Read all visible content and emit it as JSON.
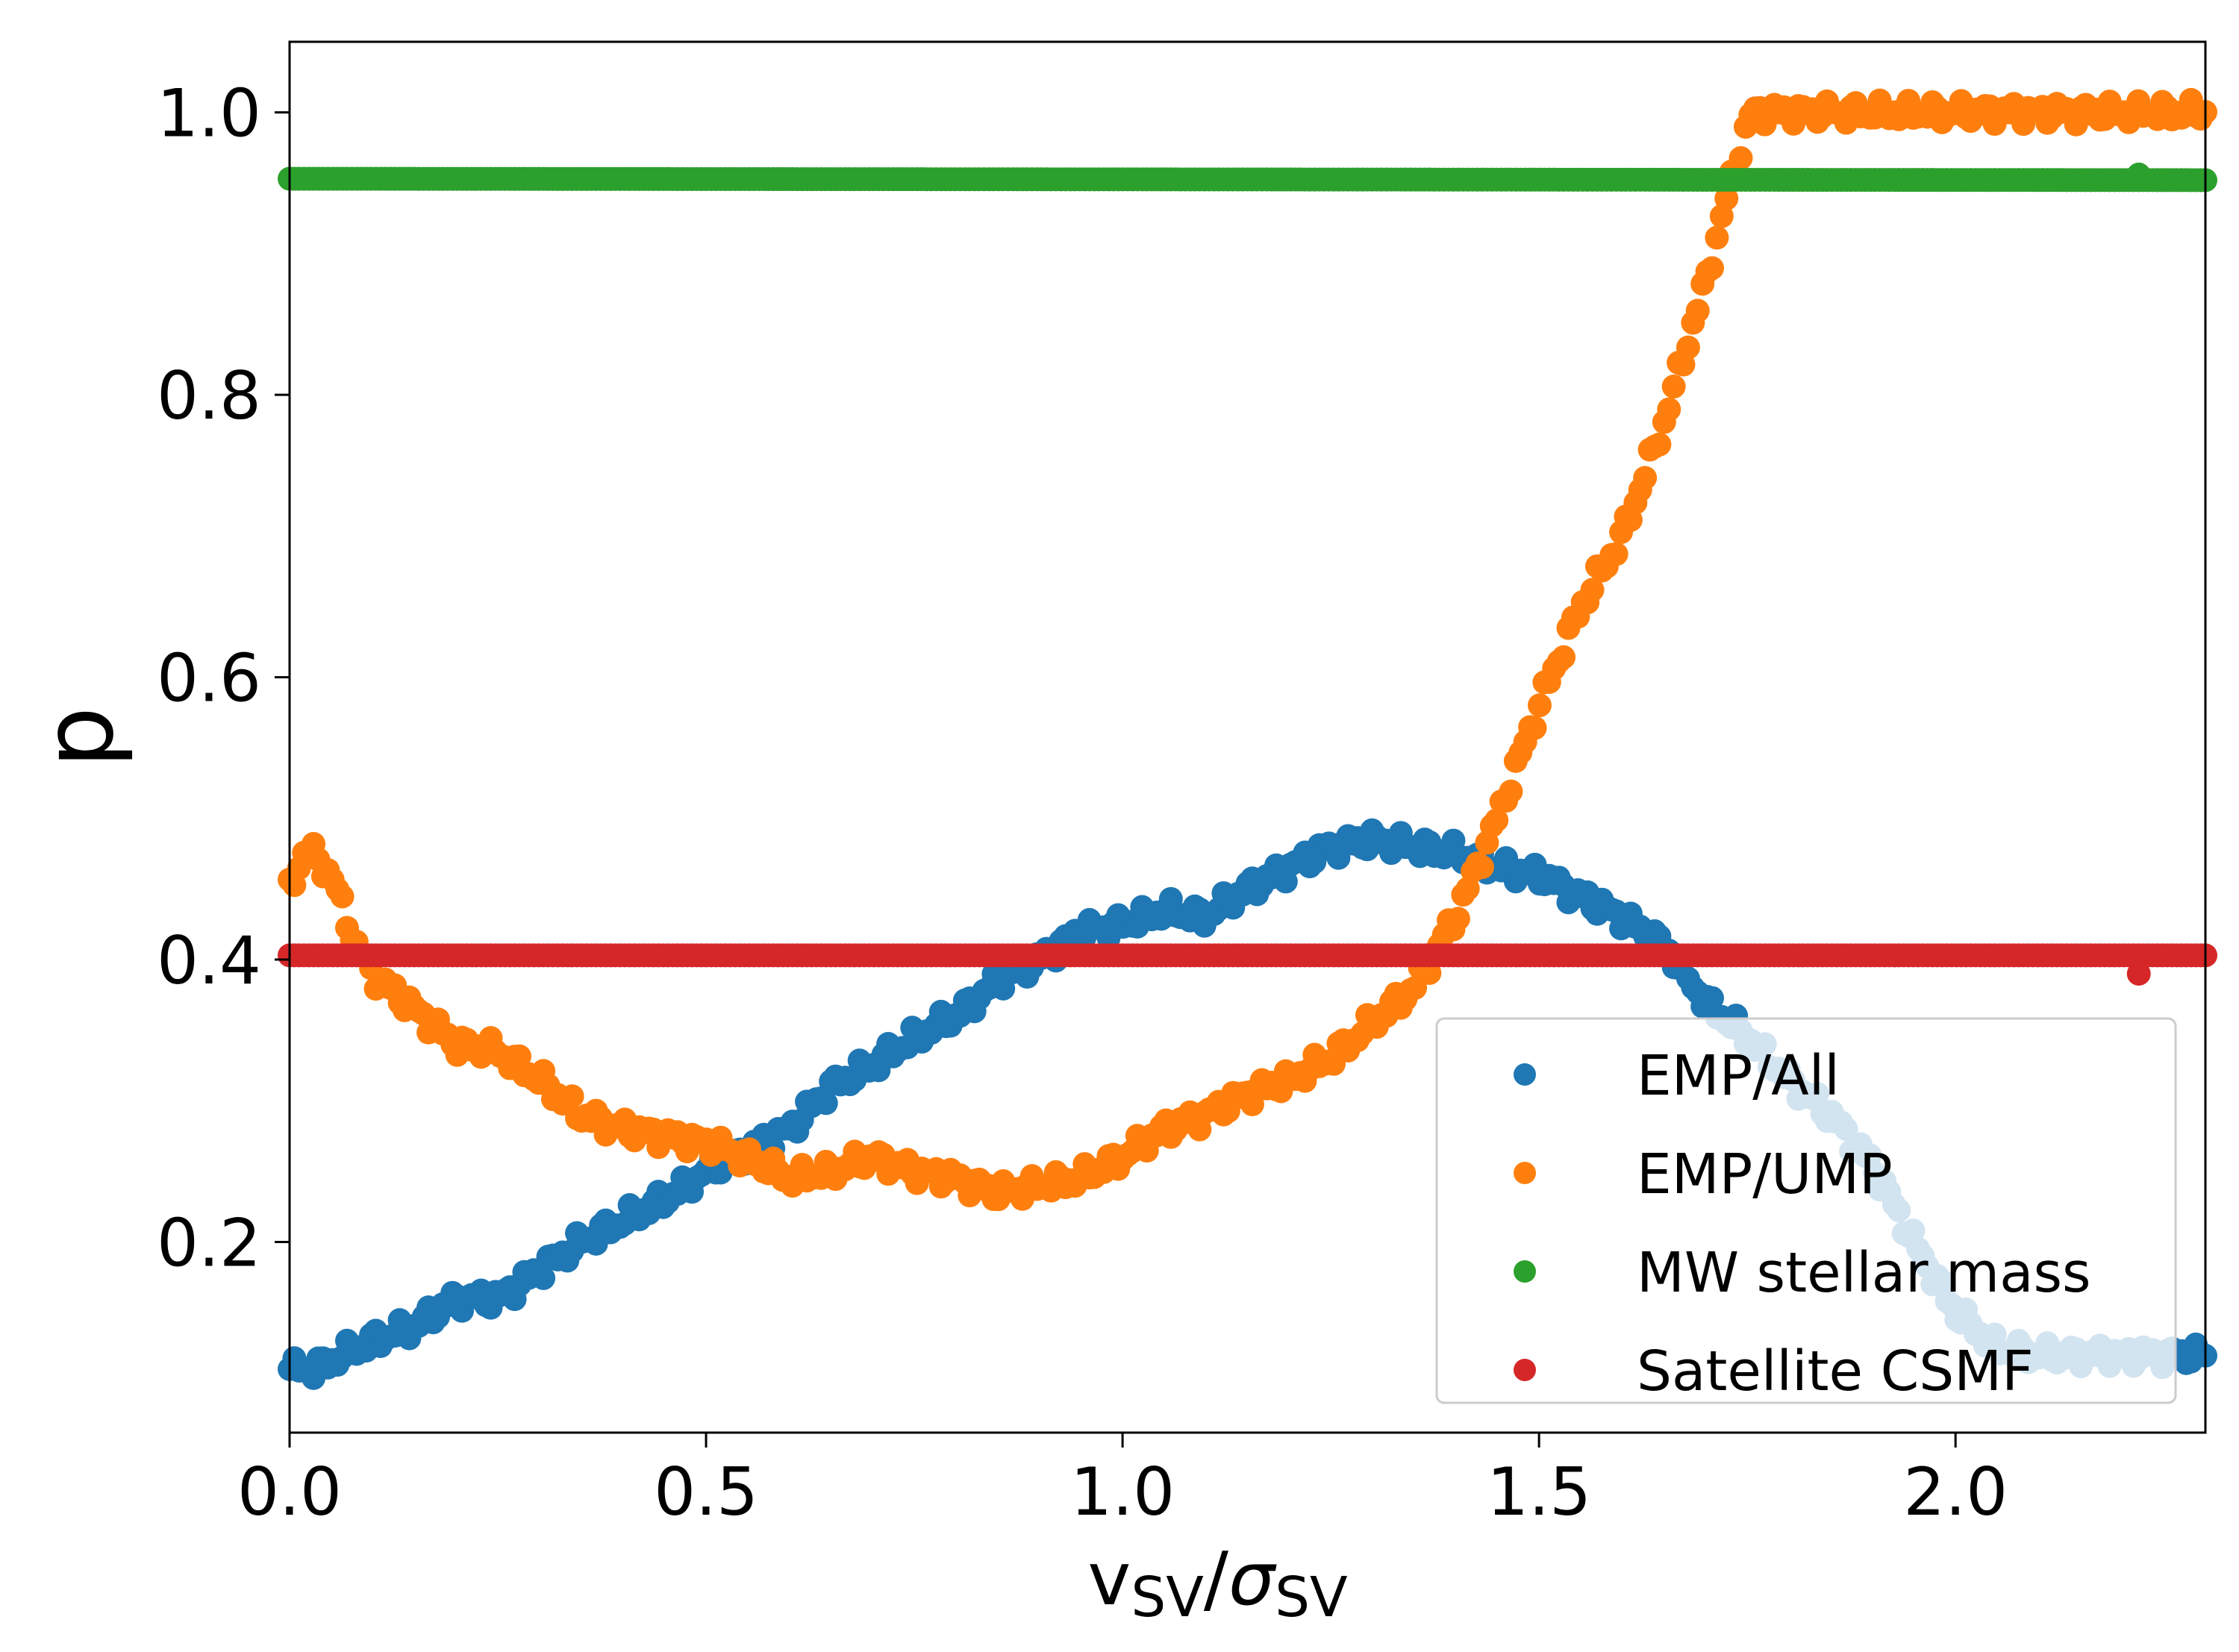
{
  "chart_data": {
    "type": "scatter",
    "title": "",
    "xlabel": {
      "main": "v",
      "sub1": "SV",
      "slash": "/",
      "sigma": "σ",
      "sub2": "SV"
    },
    "ylabel": "p",
    "xlim": [
      0.0,
      2.3
    ],
    "ylim": [
      0.065,
      1.05
    ],
    "xticks": [
      0.0,
      0.5,
      1.0,
      1.5,
      2.0
    ],
    "xtick_labels": [
      "0.0",
      "0.5",
      "1.0",
      "1.5",
      "2.0"
    ],
    "yticks": [
      0.2,
      0.4,
      0.6,
      0.8,
      1.0
    ],
    "ytick_labels": [
      "0.2",
      "0.4",
      "0.6",
      "0.8",
      "1.0"
    ],
    "grid": false,
    "legend_position": "lower-right",
    "series": [
      {
        "name": "EMP/All",
        "color": "#1f77b4",
        "anchors": [
          [
            0.0,
            0.11
          ],
          [
            0.03,
            0.11
          ],
          [
            0.1,
            0.13
          ],
          [
            0.15,
            0.14
          ],
          [
            0.2,
            0.16
          ],
          [
            0.25,
            0.16
          ],
          [
            0.3,
            0.18
          ],
          [
            0.35,
            0.2
          ],
          [
            0.4,
            0.215
          ],
          [
            0.45,
            0.23
          ],
          [
            0.5,
            0.25
          ],
          [
            0.55,
            0.265
          ],
          [
            0.6,
            0.28
          ],
          [
            0.65,
            0.31
          ],
          [
            0.7,
            0.325
          ],
          [
            0.75,
            0.345
          ],
          [
            0.8,
            0.36
          ],
          [
            0.85,
            0.385
          ],
          [
            0.9,
            0.4
          ],
          [
            0.95,
            0.42
          ],
          [
            1.0,
            0.425
          ],
          [
            1.05,
            0.435
          ],
          [
            1.1,
            0.43
          ],
          [
            1.15,
            0.45
          ],
          [
            1.2,
            0.465
          ],
          [
            1.25,
            0.48
          ],
          [
            1.3,
            0.485
          ],
          [
            1.35,
            0.48
          ],
          [
            1.4,
            0.475
          ],
          [
            1.45,
            0.465
          ],
          [
            1.5,
            0.46
          ],
          [
            1.55,
            0.445
          ],
          [
            1.6,
            0.43
          ],
          [
            1.65,
            0.41
          ],
          [
            1.7,
            0.37
          ],
          [
            1.75,
            0.345
          ],
          [
            1.8,
            0.315
          ],
          [
            1.85,
            0.29
          ],
          [
            1.9,
            0.255
          ],
          [
            1.95,
            0.2
          ],
          [
            2.0,
            0.15
          ],
          [
            2.05,
            0.125
          ],
          [
            2.1,
            0.12
          ],
          [
            2.15,
            0.12
          ],
          [
            2.3,
            0.12
          ]
        ]
      },
      {
        "name": "EMP/UMP",
        "color": "#ff7f0e",
        "anchors": [
          [
            0.0,
            0.45
          ],
          [
            0.02,
            0.48
          ],
          [
            0.05,
            0.46
          ],
          [
            0.08,
            0.41
          ],
          [
            0.1,
            0.39
          ],
          [
            0.15,
            0.365
          ],
          [
            0.2,
            0.34
          ],
          [
            0.25,
            0.335
          ],
          [
            0.3,
            0.315
          ],
          [
            0.35,
            0.29
          ],
          [
            0.4,
            0.28
          ],
          [
            0.45,
            0.275
          ],
          [
            0.5,
            0.27
          ],
          [
            0.55,
            0.26
          ],
          [
            0.6,
            0.245
          ],
          [
            0.65,
            0.25
          ],
          [
            0.7,
            0.26
          ],
          [
            0.75,
            0.25
          ],
          [
            0.8,
            0.245
          ],
          [
            0.85,
            0.235
          ],
          [
            0.9,
            0.24
          ],
          [
            0.95,
            0.245
          ],
          [
            1.0,
            0.26
          ],
          [
            1.05,
            0.28
          ],
          [
            1.1,
            0.29
          ],
          [
            1.15,
            0.305
          ],
          [
            1.2,
            0.315
          ],
          [
            1.25,
            0.33
          ],
          [
            1.3,
            0.355
          ],
          [
            1.35,
            0.38
          ],
          [
            1.4,
            0.43
          ],
          [
            1.45,
            0.5
          ],
          [
            1.5,
            0.58
          ],
          [
            1.55,
            0.65
          ],
          [
            1.6,
            0.7
          ],
          [
            1.65,
            0.78
          ],
          [
            1.7,
            0.88
          ],
          [
            1.73,
            0.95
          ],
          [
            1.755,
            1.0
          ],
          [
            2.3,
            1.0
          ]
        ]
      },
      {
        "name": "MW stellar mass",
        "color": "#2ca02c",
        "anchors": [
          [
            0.0,
            0.953
          ],
          [
            2.3,
            0.952
          ]
        ]
      },
      {
        "name": "Satellite CSMF",
        "color": "#d62728",
        "anchors": [
          [
            0.0,
            0.403
          ],
          [
            2.3,
            0.403
          ]
        ]
      }
    ],
    "outliers": [
      {
        "series": "MW stellar mass",
        "x": 2.22,
        "y": 0.956
      },
      {
        "series": "Satellite CSMF",
        "x": 2.22,
        "y": 0.39
      }
    ]
  }
}
